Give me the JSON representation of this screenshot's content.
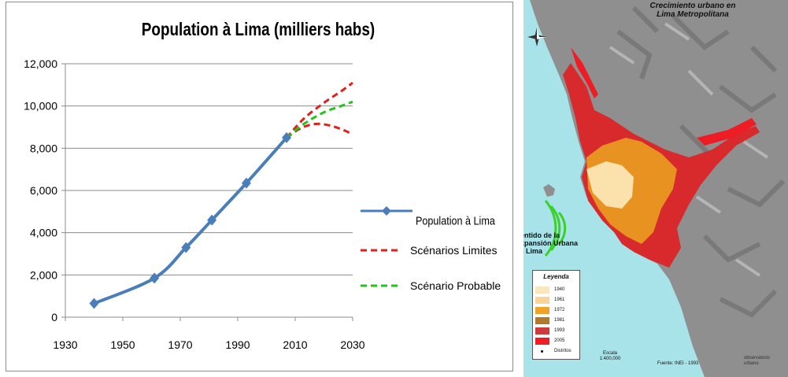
{
  "chart_data": {
    "type": "line",
    "title": "Population à Lima (milliers habs)",
    "xlabel": "",
    "ylabel": "",
    "xlim": [
      1930,
      2030
    ],
    "ylim": [
      0,
      12000
    ],
    "x_ticks": [
      1930,
      1950,
      1970,
      1990,
      2010,
      2030
    ],
    "y_ticks": [
      0,
      2000,
      4000,
      6000,
      8000,
      10000,
      12000
    ],
    "y_tick_labels": [
      "0",
      "2,000",
      "4,000",
      "6,000",
      "8,000",
      "10,000",
      "12,000"
    ],
    "grid": "horizontal",
    "legend_position": "right",
    "series": [
      {
        "name": "Population à Lima",
        "style": "solid-diamond",
        "color": "#4a7ebb",
        "x": [
          1940,
          1961,
          1972,
          1981,
          1993,
          2007
        ],
        "y": [
          650,
          1850,
          3300,
          4600,
          6350,
          8500
        ]
      },
      {
        "name": "Scénarios Limites",
        "style": "dashed",
        "color": "#e0201b",
        "x": [
          2007,
          2013,
          2020,
          2026,
          2030
        ],
        "y": [
          8500,
          9400,
          10150,
          10700,
          11100
        ]
      },
      {
        "name": "",
        "style": "dashed",
        "color": "#e0201b",
        "x": [
          2007,
          2012,
          2017,
          2022,
          2027,
          2030
        ],
        "y": [
          8500,
          8950,
          9150,
          9080,
          8850,
          8650
        ]
      },
      {
        "name": "Scénario Probable",
        "style": "dashed",
        "color": "#22c41a",
        "x": [
          2007,
          2013,
          2020,
          2026,
          2030
        ],
        "y": [
          8500,
          9150,
          9700,
          10000,
          10200
        ]
      }
    ]
  },
  "map": {
    "title_line1": "Crecimiento urbano en",
    "title_line2": "Lima Metropolitana",
    "sentido_line1": "Sentido de la",
    "sentido_line2": "Expansión Urbana",
    "sentido_line3": "en Lima",
    "legend_title": "Leyenda",
    "legend_items": [
      {
        "label": "1940",
        "color": "#fbe7bd"
      },
      {
        "label": "1961",
        "color": "#f8d49a"
      },
      {
        "label": "1972",
        "color": "#f0a329"
      },
      {
        "label": "1981",
        "color": "#b07a2a"
      },
      {
        "label": "1993",
        "color": "#cf3a3c"
      },
      {
        "label": "2005",
        "color": "#ee1c24"
      },
      {
        "label": "Distritos",
        "color": "#000000"
      }
    ],
    "scale_label": "Escala",
    "scale_value": "1:400,000",
    "source": "Fuente: INEI - 1993",
    "logo_line1": "observatorio",
    "logo_line2": "urbano",
    "compass_label": "N",
    "colors": {
      "sea": "#a9e3ea",
      "terrain": "#8f8f8f",
      "arrow": "#3ad12a"
    }
  }
}
